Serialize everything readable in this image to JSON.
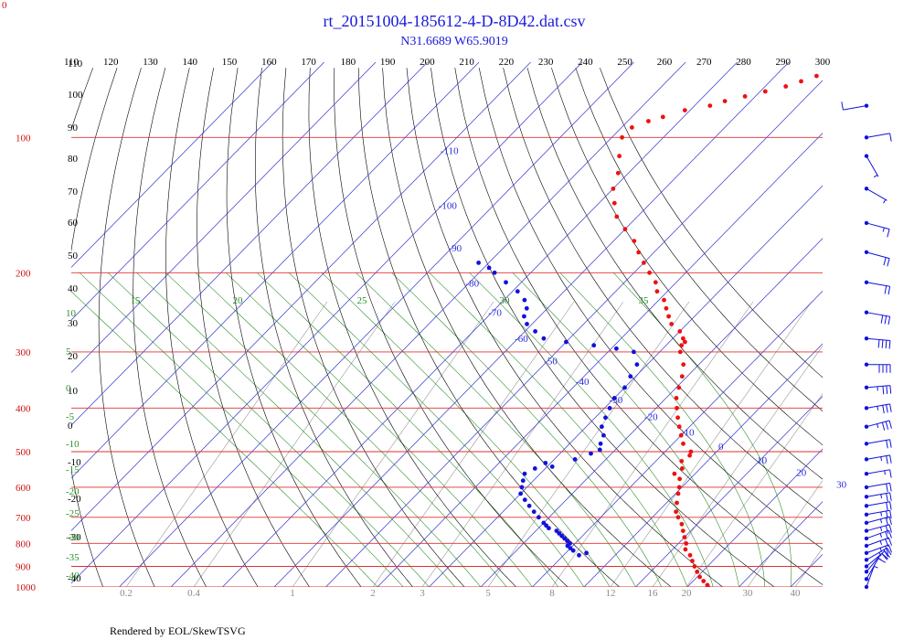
{
  "chart_data": {
    "type": "scatter",
    "title": "rt_20151004-185612-4-D-8D42.dat.csv",
    "subtitle": "N31.6689 W65.9019",
    "corner_label": "0",
    "footer": "Rendered by EOL/SkewTSVG",
    "pressure_ticks": [
      "100",
      "200",
      "300",
      "400",
      "500",
      "600",
      "700",
      "800",
      "900",
      "1000"
    ],
    "pressure_values": [
      100,
      200,
      300,
      400,
      500,
      600,
      700,
      800,
      900,
      1000
    ],
    "theta_ticks": [
      "110",
      "120",
      "130",
      "140",
      "150",
      "160",
      "170",
      "180",
      "190",
      "200",
      "210",
      "220",
      "230",
      "240",
      "250",
      "260",
      "270",
      "280",
      "290",
      "300"
    ],
    "theta_values": [
      110,
      120,
      130,
      140,
      150,
      160,
      170,
      180,
      190,
      200,
      210,
      220,
      230,
      240,
      250,
      260,
      270,
      280,
      290,
      300
    ],
    "isotherm_labels": [
      "-110",
      "-100",
      "-90",
      "-80",
      "-70",
      "-60",
      "-50",
      "-40",
      "-30",
      "-20",
      "-10",
      "0",
      "10",
      "20",
      "30"
    ],
    "isotherm_values": [
      -110,
      -100,
      -90,
      -80,
      -70,
      -60,
      -50,
      -40,
      -30,
      -20,
      -10,
      0,
      10,
      20,
      30
    ],
    "wet_adiabat_labels": [
      "15",
      "20",
      "25",
      "30",
      "35"
    ],
    "mixing_ratio_labels": [
      "0.2",
      "0.4",
      "1",
      "2",
      "3",
      "5",
      "8",
      "12",
      "16",
      "20",
      "30",
      "40"
    ],
    "left_labels": [
      "110",
      "100",
      "90",
      "80",
      "70",
      "60",
      "50",
      "40",
      "30",
      "20",
      "10",
      "0",
      "-10",
      "-20",
      "-30",
      "-40"
    ],
    "left_green_labels": [
      "10",
      "5",
      "0",
      "-5",
      "-10",
      "-15",
      "-20",
      "-25",
      "-30",
      "-35",
      "-40"
    ],
    "colors": {
      "temperature": "#ee1111",
      "dewpoint": "#1111dd",
      "isobar": "#e03030",
      "isotherm": "#3333cc",
      "dry_adiabat": "#000000",
      "wet_adiabat": "#2f8f2f",
      "mixing_ratio": "#999999"
    },
    "series": [
      {
        "values": [
          [
            1000,
            24
          ],
          [
            990,
            23.5
          ],
          [
            970,
            22
          ],
          [
            950,
            20.5
          ],
          [
            925,
            19
          ],
          [
            900,
            17.5
          ],
          [
            875,
            16
          ],
          [
            850,
            14.5
          ],
          [
            825,
            12.5
          ],
          [
            800,
            11.5
          ],
          [
            775,
            10
          ],
          [
            750,
            8.5
          ],
          [
            725,
            7
          ],
          [
            700,
            5
          ],
          [
            680,
            3.5
          ],
          [
            650,
            2
          ],
          [
            620,
            0.5
          ],
          [
            600,
            -0.5
          ],
          [
            575,
            -2
          ],
          [
            560,
            -4
          ],
          [
            545,
            -3.5
          ],
          [
            525,
            -5
          ],
          [
            510,
            -4.5
          ],
          [
            500,
            -5
          ],
          [
            480,
            -8
          ],
          [
            460,
            -10
          ],
          [
            440,
            -12
          ],
          [
            420,
            -14
          ],
          [
            400,
            -16
          ],
          [
            380,
            -18
          ],
          [
            360,
            -19.5
          ],
          [
            340,
            -21
          ],
          [
            320,
            -23
          ],
          [
            300,
            -26
          ],
          [
            290,
            -27
          ],
          [
            285,
            -27
          ],
          [
            280,
            -28
          ],
          [
            270,
            -30
          ],
          [
            260,
            -33
          ],
          [
            250,
            -35
          ],
          [
            240,
            -37
          ],
          [
            230,
            -39
          ],
          [
            220,
            -42
          ],
          [
            210,
            -44
          ],
          [
            200,
            -47
          ],
          [
            190,
            -50
          ],
          [
            180,
            -53
          ],
          [
            170,
            -56
          ],
          [
            160,
            -60
          ],
          [
            150,
            -64
          ],
          [
            140,
            -67
          ],
          [
            130,
            -70
          ],
          [
            120,
            -72
          ],
          [
            110,
            -75
          ],
          [
            100,
            -78
          ],
          [
            95,
            -78
          ],
          [
            92,
            -76
          ],
          [
            90,
            -74
          ],
          [
            87,
            -71
          ],
          [
            85,
            -67
          ],
          [
            83,
            -65
          ],
          [
            81,
            -62
          ],
          [
            79,
            -59
          ],
          [
            77,
            -56
          ],
          [
            75,
            -54
          ],
          [
            73,
            -52
          ]
        ]
      },
      {
        "values": [
          [
            850,
            -7
          ],
          [
            840,
            -6
          ],
          [
            830,
            -9
          ],
          [
            820,
            -10
          ],
          [
            810,
            -11
          ],
          [
            800,
            -11
          ],
          [
            790,
            -12
          ],
          [
            780,
            -13
          ],
          [
            770,
            -14
          ],
          [
            760,
            -15
          ],
          [
            750,
            -16
          ],
          [
            740,
            -18
          ],
          [
            730,
            -19
          ],
          [
            720,
            -20
          ],
          [
            700,
            -22
          ],
          [
            680,
            -24
          ],
          [
            660,
            -26
          ],
          [
            640,
            -28
          ],
          [
            620,
            -30
          ],
          [
            600,
            -31
          ],
          [
            580,
            -32
          ],
          [
            560,
            -33
          ],
          [
            545,
            -32
          ],
          [
            540,
            -29
          ],
          [
            530,
            -31
          ],
          [
            520,
            -26
          ],
          [
            505,
            -24
          ],
          [
            495,
            -23
          ],
          [
            480,
            -24
          ],
          [
            460,
            -25
          ],
          [
            440,
            -27
          ],
          [
            420,
            -28
          ],
          [
            400,
            -29
          ],
          [
            380,
            -30
          ],
          [
            360,
            -30
          ],
          [
            340,
            -31
          ],
          [
            320,
            -32
          ],
          [
            300,
            -35
          ],
          [
            295,
            -39
          ],
          [
            290,
            -44
          ],
          [
            285,
            -50
          ],
          [
            280,
            -55
          ],
          [
            270,
            -58
          ],
          [
            260,
            -61
          ],
          [
            250,
            -63
          ],
          [
            240,
            -64
          ],
          [
            230,
            -66
          ],
          [
            220,
            -69
          ],
          [
            210,
            -73
          ],
          [
            200,
            -77
          ],
          [
            195,
            -79
          ],
          [
            190,
            -82
          ]
        ]
      }
    ],
    "wind_barbs": [
      {
        "p": 1000,
        "dir": 200,
        "speed": 5
      },
      {
        "p": 960,
        "dir": 210,
        "speed": 10
      },
      {
        "p": 925,
        "dir": 220,
        "speed": 15
      },
      {
        "p": 900,
        "dir": 230,
        "speed": 20
      },
      {
        "p": 870,
        "dir": 240,
        "speed": 25
      },
      {
        "p": 840,
        "dir": 250,
        "speed": 25
      },
      {
        "p": 810,
        "dir": 250,
        "speed": 25
      },
      {
        "p": 780,
        "dir": 250,
        "speed": 25
      },
      {
        "p": 750,
        "dir": 255,
        "speed": 25
      },
      {
        "p": 720,
        "dir": 255,
        "speed": 25
      },
      {
        "p": 690,
        "dir": 260,
        "speed": 25
      },
      {
        "p": 660,
        "dir": 260,
        "speed": 20
      },
      {
        "p": 630,
        "dir": 260,
        "speed": 25
      },
      {
        "p": 600,
        "dir": 260,
        "speed": 20
      },
      {
        "p": 560,
        "dir": 260,
        "speed": 15
      },
      {
        "p": 520,
        "dir": 260,
        "speed": 25
      },
      {
        "p": 480,
        "dir": 260,
        "speed": 20
      },
      {
        "p": 440,
        "dir": 255,
        "speed": 35
      },
      {
        "p": 400,
        "dir": 260,
        "speed": 35
      },
      {
        "p": 360,
        "dir": 265,
        "speed": 35
      },
      {
        "p": 320,
        "dir": 270,
        "speed": 40
      },
      {
        "p": 280,
        "dir": 275,
        "speed": 40
      },
      {
        "p": 245,
        "dir": 280,
        "speed": 30
      },
      {
        "p": 210,
        "dir": 280,
        "speed": 20
      },
      {
        "p": 180,
        "dir": 285,
        "speed": 20
      },
      {
        "p": 155,
        "dir": 285,
        "speed": 15
      },
      {
        "p": 130,
        "dir": 300,
        "speed": 5
      },
      {
        "p": 110,
        "dir": 330,
        "speed": 5
      },
      {
        "p": 100,
        "dir": 260,
        "speed": 10
      },
      {
        "p": 85,
        "dir": 80,
        "speed": 10
      }
    ]
  }
}
